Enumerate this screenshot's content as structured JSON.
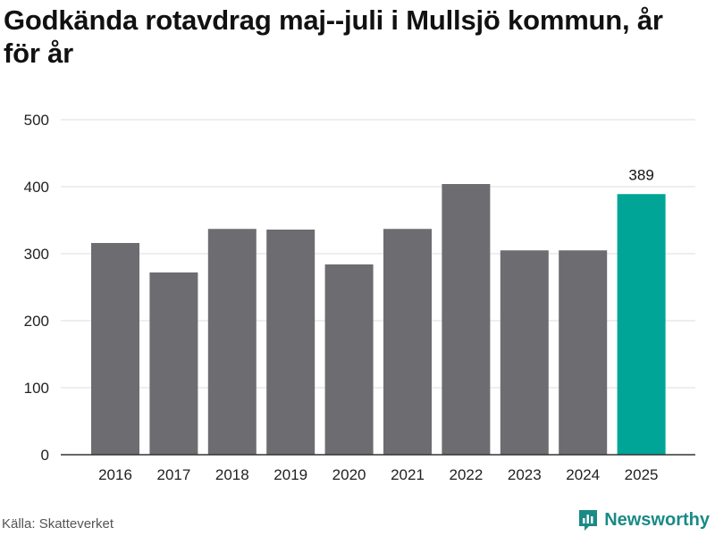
{
  "title": "Godkända rotavdrag maj--juli i Mullsjö kommun, år för år",
  "source": "Källa: Skatteverket",
  "brand": {
    "name": "Newsworthy",
    "icon": "newsworthy-logo-icon"
  },
  "colors": {
    "bar": "#6d6c71",
    "highlight": "#00a598",
    "grid": "#dddddd"
  },
  "chart_data": {
    "type": "bar",
    "title": "Godkända rotavdrag maj--juli i Mullsjö kommun, år för år",
    "xlabel": "",
    "ylabel": "",
    "categories": [
      "2016",
      "2017",
      "2018",
      "2019",
      "2020",
      "2021",
      "2022",
      "2023",
      "2024",
      "2025"
    ],
    "values": [
      316,
      272,
      337,
      336,
      284,
      337,
      404,
      305,
      305,
      389
    ],
    "highlight_index": 9,
    "data_labels": [
      {
        "index": 9,
        "text": "389"
      }
    ],
    "ylim": [
      0,
      500
    ],
    "yticks": [
      "0",
      "100",
      "200",
      "300",
      "400",
      "500"
    ],
    "grid": true,
    "legend": "none"
  }
}
